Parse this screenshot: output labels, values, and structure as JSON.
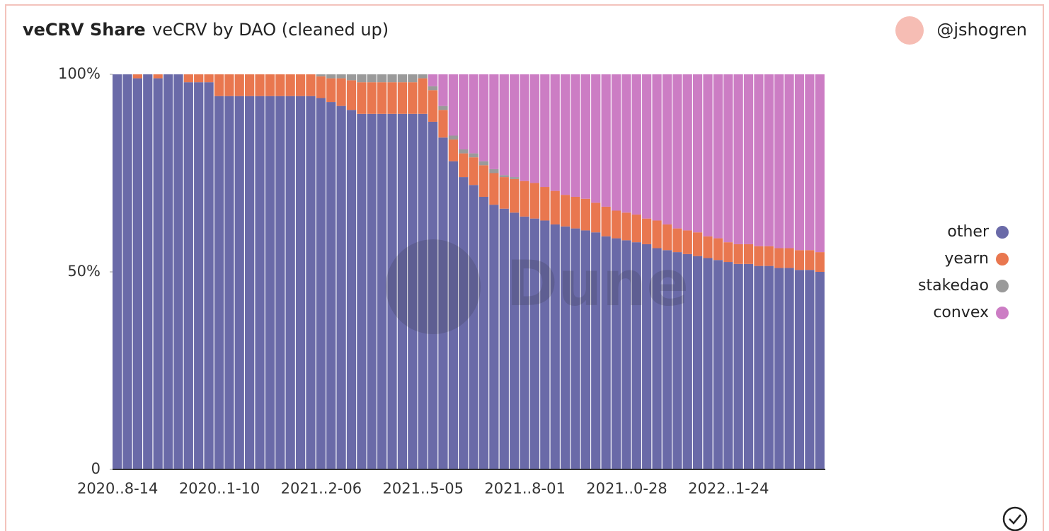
{
  "header": {
    "title": "veCRV Share",
    "subtitle": "veCRV by DAO (cleaned up)",
    "author": "@jshogren"
  },
  "watermark": "Dune",
  "chart_data": {
    "type": "stacked_bar",
    "categories": [
      "2020..8-14",
      null,
      null,
      null,
      null,
      null,
      null,
      null,
      null,
      null,
      "2020..1-10",
      null,
      null,
      null,
      null,
      null,
      null,
      null,
      null,
      null,
      "2021..2-06",
      null,
      null,
      null,
      null,
      null,
      null,
      null,
      null,
      null,
      "2021..5-05",
      null,
      null,
      null,
      null,
      null,
      null,
      null,
      null,
      null,
      "2021..8-01",
      null,
      null,
      null,
      null,
      null,
      null,
      null,
      null,
      null,
      "2021..0-28",
      null,
      null,
      null,
      null,
      null,
      null,
      null,
      null,
      null,
      "2022..1-24",
      null,
      null,
      null,
      null,
      null,
      null,
      null,
      null,
      null
    ],
    "series": [
      {
        "name": "other",
        "color": "#6a6aa8",
        "values": [
          100,
          100,
          99,
          100,
          99,
          100,
          100,
          98,
          98,
          98,
          94.5,
          94.5,
          94.5,
          94.5,
          94.5,
          94.5,
          94.5,
          94.5,
          94.5,
          94.5,
          94,
          93,
          92,
          91,
          90,
          90,
          90,
          90,
          90,
          90,
          90,
          88,
          84,
          78,
          74,
          72,
          69,
          67,
          66,
          65,
          64,
          63.5,
          63,
          62,
          61.5,
          61,
          60.5,
          60,
          59,
          58.5,
          58,
          57.5,
          57,
          56,
          55.5,
          55,
          54.5,
          54,
          53.5,
          53,
          52.5,
          52,
          52,
          51.5,
          51.5,
          51,
          51,
          50.5,
          50.5,
          50
        ]
      },
      {
        "name": "yearn",
        "color": "#e9774f",
        "values": [
          0,
          0,
          1,
          0,
          1,
          0,
          0,
          2,
          2,
          2,
          5.5,
          5.5,
          5.5,
          5.5,
          5.5,
          5.5,
          5.5,
          5.5,
          5.5,
          5.5,
          5.5,
          6,
          7,
          7.5,
          8,
          8,
          8,
          8,
          8,
          8,
          9,
          8,
          7,
          5.5,
          6,
          7,
          8,
          8,
          8,
          8.5,
          9,
          9,
          8.5,
          8.5,
          8,
          8,
          8,
          7.5,
          7.5,
          7,
          7,
          7,
          6.5,
          7,
          6.5,
          6,
          6,
          6,
          5.5,
          5.5,
          5,
          5,
          5,
          5,
          5,
          5,
          5,
          5,
          5,
          5
        ]
      },
      {
        "name": "stakedao",
        "color": "#9a9a9a",
        "values": [
          0,
          0,
          0,
          0,
          0,
          0,
          0,
          0,
          0,
          0,
          0,
          0,
          0,
          0,
          0,
          0,
          0,
          0,
          0,
          0,
          0.5,
          1,
          1,
          1.5,
          2,
          2,
          2,
          2,
          2,
          2,
          1,
          1,
          1,
          1,
          1,
          1,
          1,
          1,
          0.5,
          0.5,
          0,
          0,
          0,
          0,
          0,
          0,
          0,
          0,
          0,
          0,
          0,
          0,
          0,
          0,
          0,
          0,
          0,
          0,
          0,
          0,
          0,
          0,
          0,
          0,
          0,
          0,
          0,
          0,
          0,
          0
        ]
      },
      {
        "name": "convex",
        "color": "#cc7dc4",
        "values": [
          0,
          0,
          0,
          0,
          0,
          0,
          0,
          0,
          0,
          0,
          0,
          0,
          0,
          0,
          0,
          0,
          0,
          0,
          0,
          0,
          0,
          0,
          0,
          0,
          0,
          0,
          0,
          0,
          0,
          0,
          0,
          3,
          8,
          15.5,
          19,
          20,
          22,
          24,
          25.5,
          26,
          27,
          27.5,
          28.5,
          29.5,
          30.5,
          31,
          31.5,
          32.5,
          33.5,
          34.5,
          35,
          35.5,
          36.5,
          37,
          38,
          39,
          39.5,
          40,
          41,
          41.5,
          42.5,
          43,
          43,
          43.5,
          43.5,
          44,
          44,
          44.5,
          44.5,
          45
        ]
      }
    ],
    "ylim": [
      0,
      100
    ],
    "yticks": [
      0,
      {
        "value": 50,
        "label": "50%"
      },
      {
        "value": 100,
        "label": "100%"
      }
    ],
    "legend": "right"
  }
}
